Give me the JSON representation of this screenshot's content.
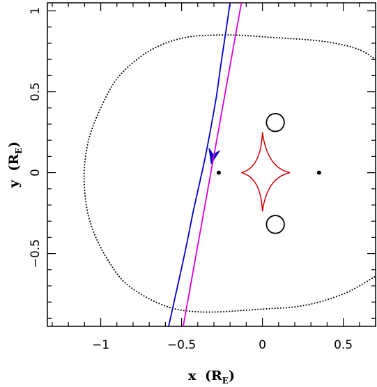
{
  "chart_data": {
    "type": "line",
    "title": "",
    "xlabel": "x",
    "xlabel_unit": "(R",
    "xlabel_unit_sub": "E",
    "xlabel_unit_close": ")",
    "ylabel": "y",
    "ylabel_unit": "(R",
    "ylabel_unit_sub": "E",
    "ylabel_unit_close": ")",
    "xlim": [
      -1.33,
      0.7
    ],
    "ylim": [
      -0.95,
      1.05
    ],
    "x_ticks": [
      {
        "value": -1,
        "label": "−1"
      },
      {
        "value": -0.5,
        "label": "−0.5"
      },
      {
        "value": 0,
        "label": "0"
      },
      {
        "value": 0.5,
        "label": "0.5"
      }
    ],
    "y_ticks": [
      {
        "value": 1,
        "label": "1"
      },
      {
        "value": 0.5,
        "label": "0.5"
      },
      {
        "value": 0,
        "label": "0"
      },
      {
        "value": -0.5,
        "label": "−0.5"
      }
    ],
    "grid": false,
    "lenses": [
      {
        "x": -0.27,
        "y": 0.0
      },
      {
        "x": 0.35,
        "y": 0.0
      }
    ],
    "caustic": {
      "color": "#cc0000",
      "center": [
        0.01,
        0.0
      ],
      "cusps": [
        {
          "x": 0.17,
          "y": 0.0
        },
        {
          "x": -0.13,
          "y": 0.0
        },
        {
          "x": 0.0,
          "y": 0.25
        },
        {
          "x": 0.0,
          "y": -0.24
        }
      ]
    },
    "small_caustics": [
      {
        "x": 0.08,
        "y": 0.31,
        "rx": 0.055,
        "ry": 0.055
      },
      {
        "x": 0.08,
        "y": -0.32,
        "rx": 0.055,
        "ry": 0.055
      }
    ],
    "critical_curve": {
      "style": "dotted",
      "points": [
        [
          0.7,
          0.7
        ],
        [
          0.6,
          0.76
        ],
        [
          0.45,
          0.8
        ],
        [
          0.3,
          0.82
        ],
        [
          0.15,
          0.83
        ],
        [
          0.0,
          0.84
        ],
        [
          -0.15,
          0.85
        ],
        [
          -0.3,
          0.85
        ],
        [
          -0.45,
          0.84
        ],
        [
          -0.6,
          0.8
        ],
        [
          -0.75,
          0.72
        ],
        [
          -0.9,
          0.58
        ],
        [
          -1.0,
          0.4
        ],
        [
          -1.07,
          0.22
        ],
        [
          -1.1,
          0.05
        ],
        [
          -1.1,
          -0.1
        ],
        [
          -1.08,
          -0.25
        ],
        [
          -1.03,
          -0.4
        ],
        [
          -0.95,
          -0.55
        ],
        [
          -0.85,
          -0.68
        ],
        [
          -0.7,
          -0.78
        ],
        [
          -0.55,
          -0.84
        ],
        [
          -0.4,
          -0.86
        ],
        [
          -0.25,
          -0.86
        ],
        [
          -0.1,
          -0.85
        ],
        [
          0.05,
          -0.84
        ],
        [
          0.2,
          -0.83
        ],
        [
          0.35,
          -0.8
        ],
        [
          0.5,
          -0.75
        ],
        [
          0.6,
          -0.7
        ],
        [
          0.7,
          -0.64
        ]
      ]
    },
    "series": [
      {
        "name": "",
        "color": "#0000cc",
        "points": [
          [
            -0.58,
            -0.95
          ],
          [
            -0.52,
            -0.68
          ],
          [
            -0.47,
            -0.45
          ],
          [
            -0.43,
            -0.25
          ],
          [
            -0.39,
            -0.07
          ],
          [
            -0.355,
            0.09
          ],
          [
            -0.32,
            0.27
          ],
          [
            -0.285,
            0.47
          ],
          [
            -0.255,
            0.68
          ],
          [
            -0.225,
            0.88
          ],
          [
            -0.2,
            1.05
          ]
        ],
        "arrow_at": [
          -0.31,
          0.085
        ]
      },
      {
        "name": "",
        "color": "#dd00dd",
        "points": [
          [
            -0.49,
            -0.95
          ],
          [
            -0.13,
            1.05
          ]
        ]
      }
    ]
  }
}
